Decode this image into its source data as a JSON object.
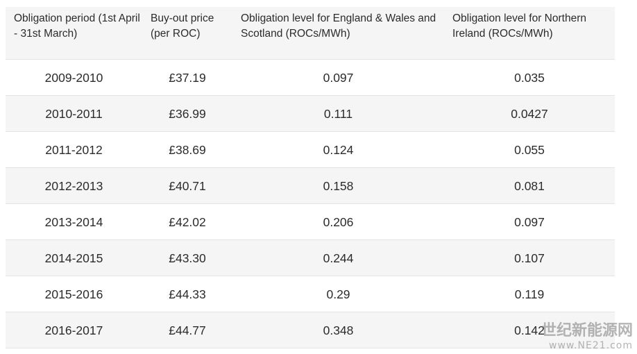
{
  "table": {
    "header": [
      "Obligation period (1st April - 31st March)",
      "Buy-out price (per ROC)",
      "Obligation level for England & Wales and Scotland (ROCs/MWh)",
      "Obligation level for Northern Ireland (ROCs/MWh)"
    ],
    "rows": [
      [
        "2009-2010",
        "£37.19",
        "0.097",
        "0.035"
      ],
      [
        "2010-2011",
        "£36.99",
        "0.111",
        "0.0427"
      ],
      [
        "2011-2012",
        "£38.69",
        "0.124",
        "0.055"
      ],
      [
        "2012-2013",
        "£40.71",
        "0.158",
        "0.081"
      ],
      [
        "2013-2014",
        "£42.02",
        "0.206",
        "0.097"
      ],
      [
        "2014-2015",
        "£43.30",
        "0.244",
        "0.107"
      ],
      [
        "2015-2016",
        "£44.33",
        "0.29",
        "0.119"
      ],
      [
        "2016-2017",
        "£44.77",
        "0.348",
        "0.142"
      ]
    ]
  },
  "watermark": {
    "name": "世纪新能源网",
    "url": "www.NE21.com"
  }
}
